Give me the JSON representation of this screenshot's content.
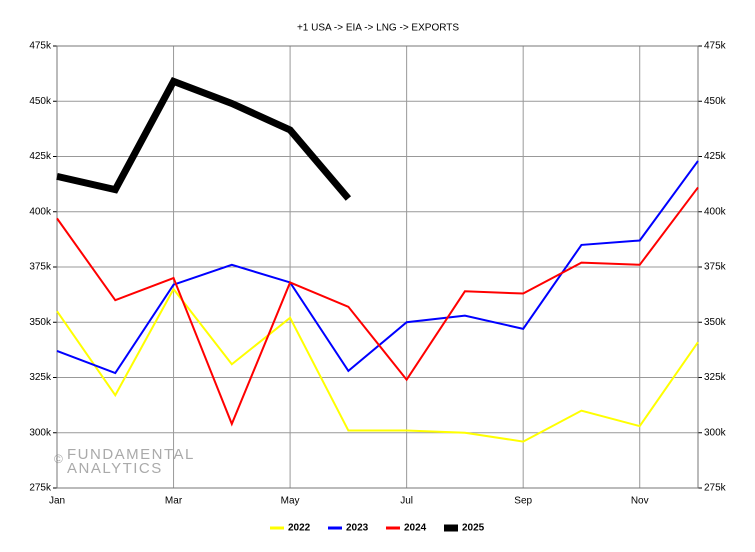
{
  "chart_data": {
    "type": "line",
    "title": "+1 USA -> EIA -> LNG -> EXPORTS",
    "categories": [
      "Jan",
      null,
      "Mar",
      null,
      "May",
      null,
      "Jul",
      null,
      "Sep",
      null,
      "Nov",
      null
    ],
    "series": [
      {
        "name": "2022",
        "color": "#ffff00",
        "line_width": 2,
        "values": [
          355000,
          317000,
          365000,
          331000,
          352000,
          301000,
          301000,
          300000,
          296000,
          310000,
          303000,
          341000
        ]
      },
      {
        "name": "2023",
        "color": "#0000ff",
        "line_width": 2,
        "values": [
          337000,
          327000,
          367000,
          376000,
          368000,
          328000,
          350000,
          353000,
          347000,
          385000,
          387000,
          423000
        ]
      },
      {
        "name": "2024",
        "color": "#ff0000",
        "line_width": 2,
        "values": [
          397000,
          360000,
          370000,
          304000,
          368000,
          357000,
          324000,
          364000,
          363000,
          377000,
          376000,
          411000
        ]
      },
      {
        "name": "2025",
        "color": "#000000",
        "line_width": 7,
        "values": [
          416000,
          410000,
          459000,
          449000,
          437000,
          406000,
          null,
          null,
          null,
          null,
          null,
          null
        ]
      }
    ],
    "ylim": [
      275000,
      475000
    ],
    "yticks": [
      {
        "value": 275000,
        "label": "275k"
      },
      {
        "value": 300000,
        "label": "300k"
      },
      {
        "value": 325000,
        "label": "325k"
      },
      {
        "value": 350000,
        "label": "350k"
      },
      {
        "value": 375000,
        "label": "375k"
      },
      {
        "value": 400000,
        "label": "400k"
      },
      {
        "value": 425000,
        "label": "425k"
      },
      {
        "value": 450000,
        "label": "450k"
      },
      {
        "value": 475000,
        "label": "475k"
      }
    ],
    "grid": true,
    "legend": "bottom",
    "watermark": {
      "symbol": "©",
      "lines": [
        "FUNDAMENTAL",
        "ANALYTICS"
      ]
    }
  }
}
